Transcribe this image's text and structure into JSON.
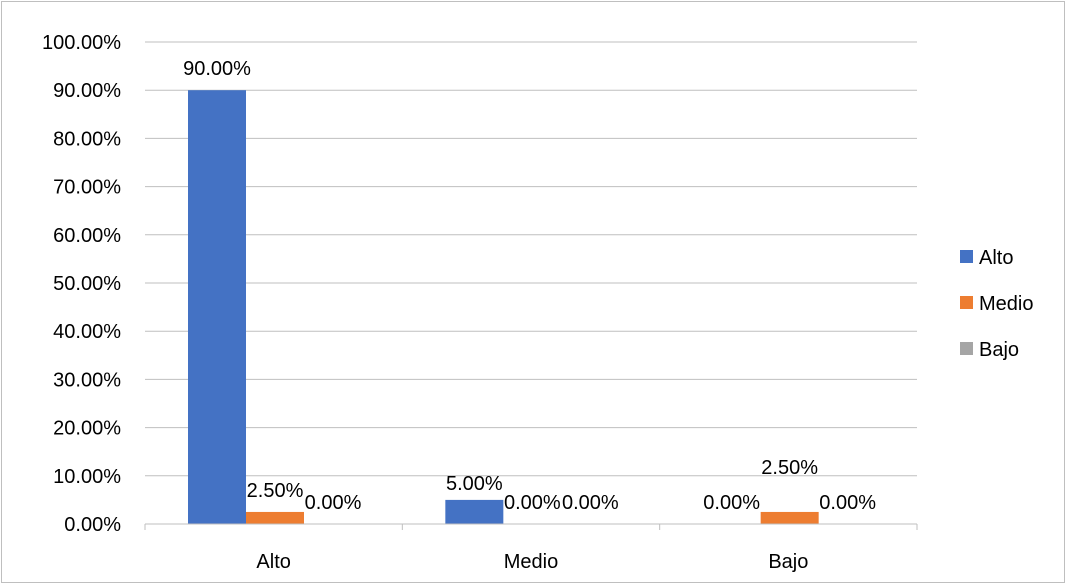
{
  "chart_data": {
    "type": "bar",
    "title": "",
    "xlabel": "",
    "ylabel": "",
    "categories": [
      "Alto",
      "Medio",
      "Bajo"
    ],
    "series": [
      {
        "name": "Alto",
        "color": "#4472c4",
        "values": [
          90.0,
          5.0,
          0.0
        ],
        "labels": [
          "90.00%",
          "5.00%",
          "0.00%"
        ]
      },
      {
        "name": "Medio",
        "color": "#ed7d31",
        "values": [
          2.5,
          0.0,
          2.5
        ],
        "labels": [
          "2.50%",
          "0.00%",
          "2.50%"
        ]
      },
      {
        "name": "Bajo",
        "color": "#a5a5a5",
        "values": [
          0.0,
          0.0,
          0.0
        ],
        "labels": [
          "0.00%",
          "0.00%",
          "0.00%"
        ]
      }
    ],
    "ylim": [
      0,
      100
    ],
    "y_ticks": [
      0,
      10,
      20,
      30,
      40,
      50,
      60,
      70,
      80,
      90,
      100
    ],
    "y_tick_labels": [
      "0.00%",
      "10.00%",
      "20.00%",
      "30.00%",
      "40.00%",
      "50.00%",
      "60.00%",
      "70.00%",
      "80.00%",
      "90.00%",
      "100.00%"
    ],
    "grid": true,
    "legend_position": "right",
    "colors": {
      "gridline": "#bfbfbf",
      "axis": "#bfbfbf",
      "border": "#bfbfbf"
    }
  }
}
